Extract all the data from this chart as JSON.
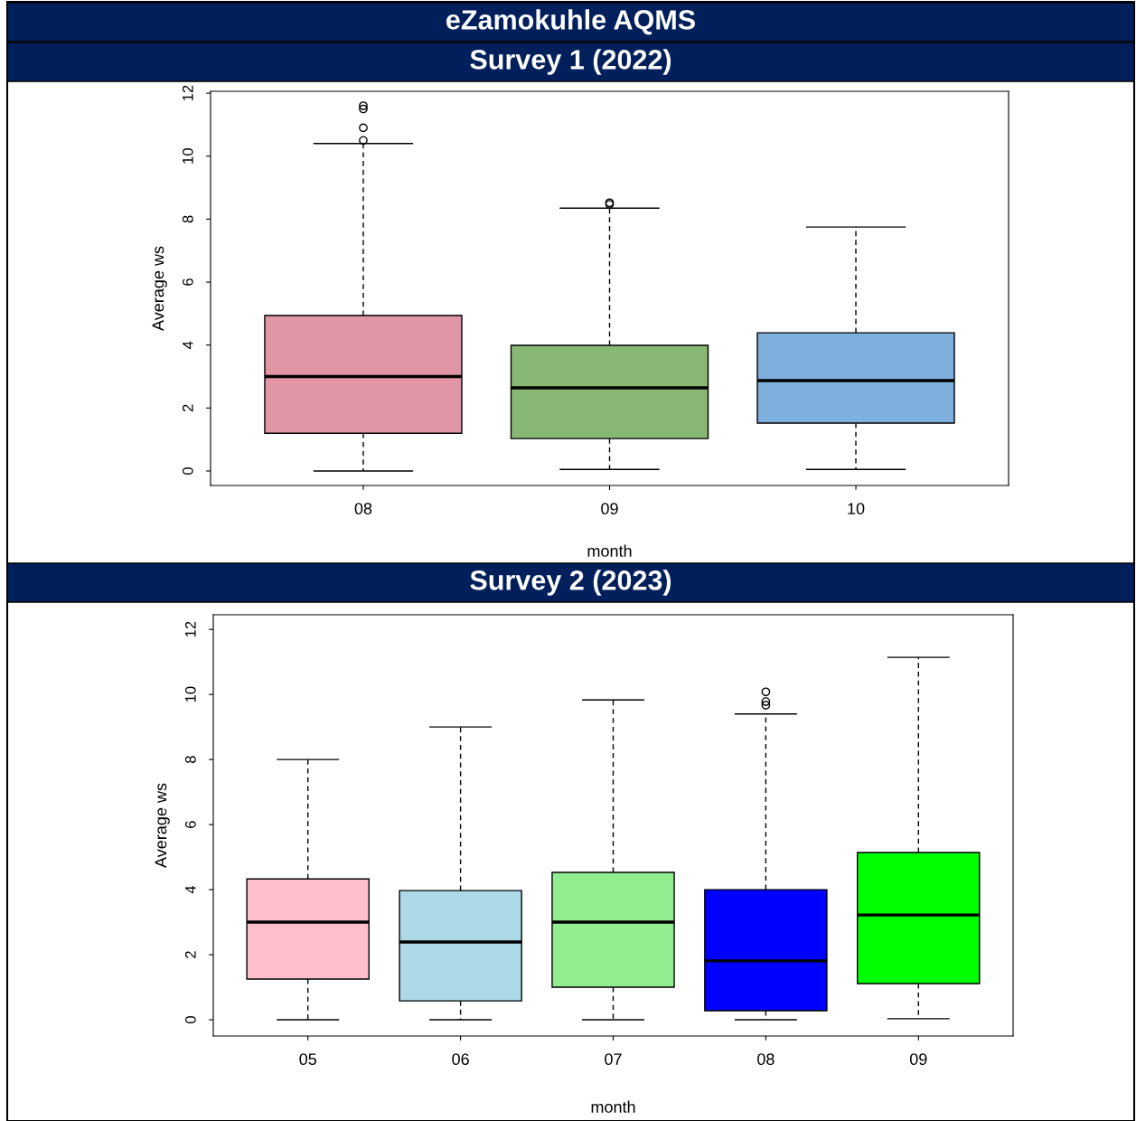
{
  "chart_data": [
    {
      "type": "box",
      "title": "eZamokuhle AQMS",
      "subtitle": "Survey 1 (2022)",
      "xlabel": "month",
      "ylabel": "Average ws",
      "categories": [
        "08",
        "09",
        "10"
      ],
      "colors": [
        "#e295a5",
        "#88b874",
        "#7fafdd"
      ],
      "ylim": [
        -0.46,
        12.06
      ],
      "yticks": [
        0,
        2,
        4,
        6,
        8,
        10,
        12
      ],
      "boxes": [
        {
          "low": 0.0,
          "q1": 1.2,
          "median": 3.0,
          "q3": 4.94,
          "high": 10.4,
          "outliers": [
            10.5,
            10.9,
            11.5,
            11.6
          ]
        },
        {
          "low": 0.05,
          "q1": 1.03,
          "median": 2.64,
          "q3": 3.99,
          "high": 8.35,
          "outliers": [
            8.47,
            8.52
          ]
        },
        {
          "low": 0.05,
          "q1": 1.52,
          "median": 2.87,
          "q3": 4.39,
          "high": 7.75
        }
      ]
    },
    {
      "type": "box",
      "subtitle": "Survey 2 (2023)",
      "xlabel": "month",
      "ylabel": "Average ws",
      "categories": [
        "05",
        "06",
        "07",
        "08",
        "09"
      ],
      "colors": [
        "#ffc0cb",
        "#add8e6",
        "#90ee90",
        "#0000ff",
        "#00ff00"
      ],
      "ylim": [
        -0.5,
        12.45
      ],
      "yticks": [
        0,
        2,
        4,
        6,
        8,
        10,
        12
      ],
      "boxes": [
        {
          "low": 0.0,
          "q1": 1.25,
          "median": 3.0,
          "q3": 4.33,
          "high": 8.0
        },
        {
          "low": 0.0,
          "q1": 0.58,
          "median": 2.39,
          "q3": 3.97,
          "high": 9.0
        },
        {
          "low": 0.0,
          "q1": 1.0,
          "median": 3.0,
          "q3": 4.53,
          "high": 9.83
        },
        {
          "low": 0.0,
          "q1": 0.28,
          "median": 1.81,
          "q3": 4.0,
          "high": 9.4,
          "outliers": [
            9.67,
            9.78,
            10.08
          ]
        },
        {
          "low": 0.03,
          "q1": 1.11,
          "median": 3.22,
          "q3": 5.14,
          "high": 11.14
        }
      ]
    }
  ]
}
